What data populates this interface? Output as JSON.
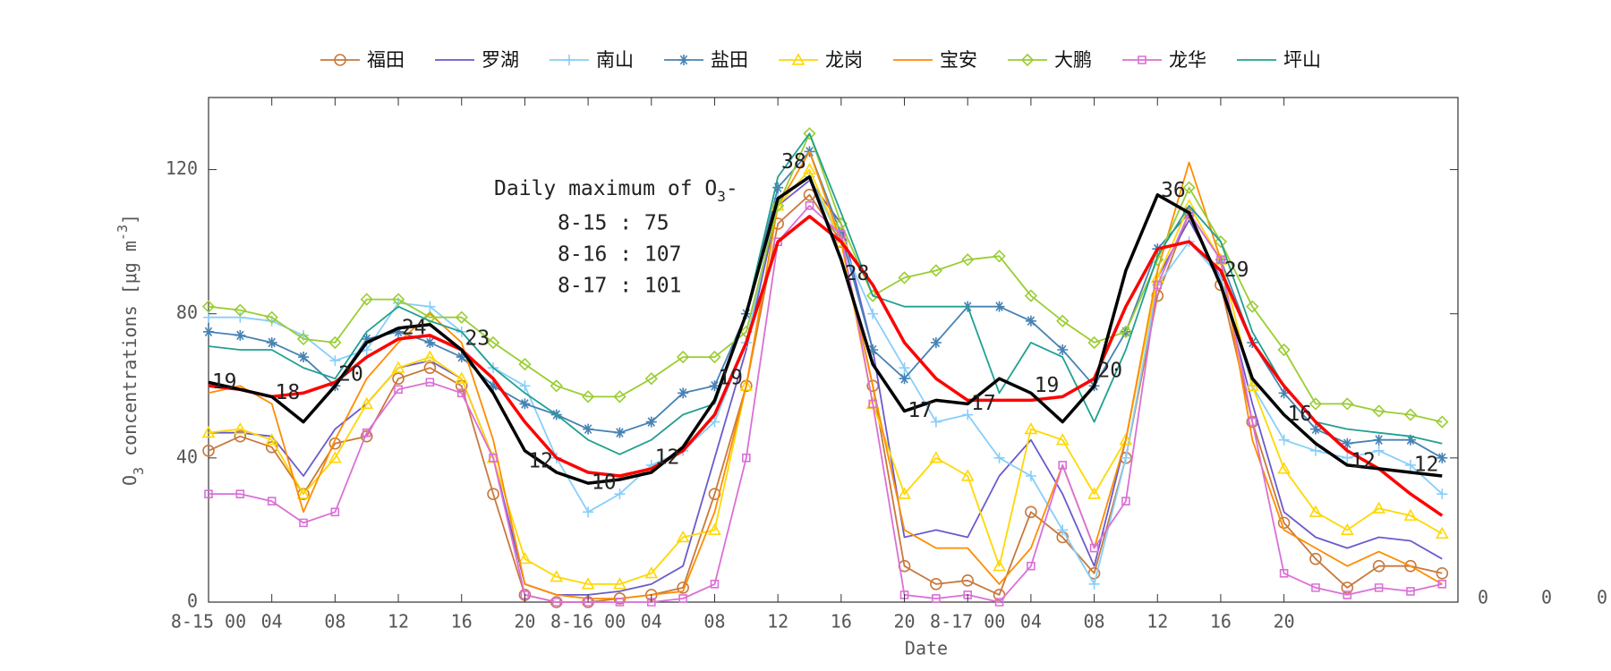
{
  "chart_data": {
    "type": "line",
    "xlabel": "Date",
    "ylabel_parts": [
      "O",
      "3",
      " concentrations [μg m",
      "-3",
      "]"
    ],
    "note": {
      "title_parts": [
        "Daily maximum of O",
        "3",
        "-"
      ],
      "lines": [
        "8-15 : 75",
        "8-16 : 107",
        "8-17 : 101"
      ]
    },
    "annotations": [
      "19",
      "18",
      "20",
      "24",
      "23",
      "12",
      "10",
      "12",
      "19",
      "38",
      "28",
      "17",
      "17",
      "19",
      "20",
      "36",
      "29",
      "16",
      "12",
      "12"
    ],
    "extra_labels": [
      "0",
      "0",
      "0"
    ],
    "x": [
      0,
      2,
      4,
      6,
      8,
      10,
      12,
      14,
      16,
      18,
      20,
      22,
      24,
      26,
      28,
      30,
      32,
      34,
      36,
      38,
      40,
      42,
      44,
      46,
      48,
      50,
      52,
      54,
      56,
      58,
      60,
      62,
      64,
      66,
      68,
      70,
      72,
      74,
      76,
      78
    ],
    "xlim": [
      0,
      79
    ],
    "ylim": [
      0,
      140
    ],
    "yticks": [
      0,
      40,
      80,
      120
    ],
    "xticks": [
      {
        "value": 0,
        "label": "8-15 00"
      },
      {
        "value": 4,
        "label": "04"
      },
      {
        "value": 8,
        "label": "08"
      },
      {
        "value": 12,
        "label": "12"
      },
      {
        "value": 16,
        "label": "16"
      },
      {
        "value": 20,
        "label": "20"
      },
      {
        "value": 24,
        "label": "8-16 00"
      },
      {
        "value": 28,
        "label": "04"
      },
      {
        "value": 32,
        "label": "08"
      },
      {
        "value": 36,
        "label": "12"
      },
      {
        "value": 40,
        "label": "16"
      },
      {
        "value": 44,
        "label": "20"
      },
      {
        "value": 48,
        "label": "8-17 00"
      },
      {
        "value": 52,
        "label": "04"
      },
      {
        "value": 56,
        "label": "08"
      },
      {
        "value": 60,
        "label": "12"
      },
      {
        "value": 64,
        "label": "16"
      },
      {
        "value": 68,
        "label": "20"
      }
    ],
    "series": [
      {
        "name": "福田",
        "color": "#c8783c",
        "marker": "circle",
        "values": [
          42,
          46,
          43,
          30,
          44,
          46,
          62,
          65,
          60,
          30,
          2,
          0,
          0,
          1,
          2,
          4,
          30,
          60,
          105,
          113,
          100,
          60,
          10,
          5,
          6,
          2,
          25,
          18,
          8,
          40,
          85,
          108,
          88,
          50,
          22,
          12,
          4,
          10,
          10,
          8
        ]
      },
      {
        "name": "罗湖",
        "color": "#6a5acd",
        "marker": "none",
        "values": [
          47,
          47,
          46,
          35,
          48,
          55,
          65,
          67,
          62,
          40,
          5,
          2,
          2,
          3,
          5,
          10,
          40,
          70,
          110,
          117,
          105,
          70,
          18,
          20,
          18,
          35,
          45,
          30,
          10,
          45,
          90,
          106,
          90,
          55,
          25,
          18,
          15,
          18,
          17,
          12
        ]
      },
      {
        "name": "南山",
        "color": "#87cefa",
        "marker": "plus",
        "values": [
          79,
          79,
          78,
          74,
          67,
          70,
          83,
          82,
          75,
          65,
          60,
          40,
          25,
          30,
          38,
          42,
          50,
          72,
          112,
          118,
          100,
          80,
          65,
          50,
          52,
          40,
          35,
          20,
          5,
          40,
          88,
          100,
          90,
          60,
          45,
          42,
          40,
          42,
          38,
          30
        ]
      },
      {
        "name": "盐田",
        "color": "#4682b4",
        "marker": "star",
        "values": [
          75,
          74,
          72,
          68,
          60,
          73,
          75,
          72,
          68,
          60,
          55,
          52,
          48,
          47,
          50,
          58,
          60,
          80,
          115,
          125,
          102,
          70,
          62,
          72,
          82,
          82,
          78,
          70,
          60,
          75,
          98,
          108,
          95,
          72,
          58,
          48,
          44,
          45,
          45,
          40
        ]
      },
      {
        "name": "龙岗",
        "color": "#ffd700",
        "marker": "triangle",
        "values": [
          47,
          48,
          45,
          30,
          40,
          55,
          65,
          68,
          62,
          40,
          12,
          7,
          5,
          5,
          8,
          18,
          20,
          60,
          110,
          120,
          100,
          55,
          30,
          40,
          35,
          10,
          48,
          45,
          30,
          45,
          90,
          110,
          95,
          60,
          37,
          25,
          20,
          26,
          24,
          19
        ]
      },
      {
        "name": "宝安",
        "color": "#ff8c00",
        "marker": "none",
        "values": [
          58,
          60,
          55,
          25,
          45,
          62,
          72,
          80,
          72,
          45,
          5,
          2,
          1,
          1,
          2,
          3,
          25,
          60,
          110,
          125,
          100,
          60,
          20,
          15,
          15,
          5,
          15,
          38,
          15,
          45,
          92,
          122,
          95,
          45,
          20,
          15,
          10,
          14,
          10,
          5
        ]
      },
      {
        "name": "大鹏",
        "color": "#9acd32",
        "marker": "diamond",
        "values": [
          82,
          81,
          79,
          73,
          72,
          84,
          84,
          79,
          79,
          72,
          66,
          60,
          57,
          57,
          62,
          68,
          68,
          75,
          110,
          130,
          105,
          85,
          90,
          92,
          95,
          96,
          85,
          78,
          72,
          75,
          95,
          115,
          100,
          82,
          70,
          55,
          55,
          53,
          52,
          50
        ]
      },
      {
        "name": "龙华",
        "color": "#da70d6",
        "marker": "square",
        "values": [
          30,
          30,
          28,
          22,
          25,
          47,
          59,
          61,
          58,
          40,
          2,
          0,
          0,
          0,
          0,
          1,
          5,
          40,
          100,
          110,
          102,
          55,
          2,
          1,
          2,
          0,
          10,
          38,
          15,
          28,
          88,
          108,
          95,
          50,
          8,
          4,
          2,
          4,
          3,
          5
        ]
      },
      {
        "name": "坪山",
        "color": "#20a090",
        "marker": "none",
        "values": [
          71,
          70,
          70,
          65,
          62,
          75,
          82,
          78,
          75,
          65,
          58,
          52,
          45,
          41,
          45,
          52,
          55,
          80,
          118,
          130,
          108,
          85,
          82,
          82,
          82,
          58,
          72,
          68,
          50,
          70,
          96,
          110,
          100,
          75,
          60,
          50,
          48,
          47,
          46,
          44
        ]
      },
      {
        "color": "#ff0000",
        "marker": "none",
        "width": 3.5,
        "values": [
          60,
          59,
          57,
          58,
          61,
          68,
          73,
          74,
          70,
          62,
          50,
          40,
          36,
          35,
          37,
          42,
          52,
          72,
          100,
          107,
          100,
          88,
          72,
          62,
          56,
          56,
          56,
          57,
          62,
          82,
          98,
          100,
          92,
          72,
          60,
          50,
          42,
          37,
          30,
          24
        ]
      },
      {
        "color": "#000000",
        "marker": "none",
        "width": 3.5,
        "values": [
          61,
          59,
          57,
          50,
          60,
          72,
          76,
          77,
          70,
          58,
          42,
          36,
          33,
          34,
          36,
          43,
          56,
          80,
          112,
          118,
          95,
          66,
          53,
          56,
          55,
          62,
          58,
          50,
          60,
          92,
          113,
          108,
          88,
          62,
          52,
          44,
          38,
          37,
          36,
          35
        ]
      }
    ]
  }
}
